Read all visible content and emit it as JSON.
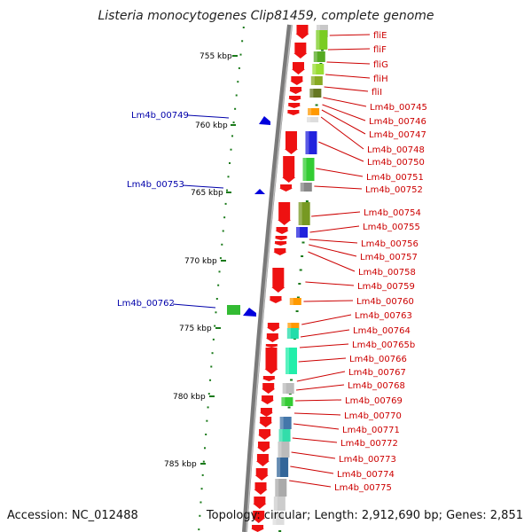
{
  "title": "Listeria monocytogenes Clip81459, complete genome",
  "footer": {
    "accession": "Accession: NC_012488",
    "summary": "Topology: circular; Length: 2,912,690 bp; Genes: 2,851"
  },
  "colors": {
    "gene_label_right": "#cc0000",
    "gene_label_left": "#0000aa",
    "forward_arrow": "#ee1111",
    "reverse_arrow": "#0000dd",
    "tick": "#1a7a1a"
  },
  "scale_ticks": [
    "755 kbp",
    "760 kbp",
    "765 kbp",
    "770 kbp",
    "775 kbp",
    "780 kbp",
    "785 kbp"
  ],
  "right_gene_labels": [
    "fliE",
    "fliF",
    "fliG",
    "fliH",
    "fliI",
    "Lm4b_00745",
    "Lm4b_00746",
    "Lm4b_00747",
    "Lm4b_00748",
    "Lm4b_00750",
    "Lm4b_00751",
    "Lm4b_00752",
    "Lm4b_00754",
    "Lm4b_00755",
    "Lm4b_00756",
    "Lm4b_00757",
    "Lm4b_00758",
    "Lm4b_00759",
    "Lm4b_00760",
    "Lm4b_00763",
    "Lm4b_00764",
    "Lm4b_00765b",
    "Lm4b_00766",
    "Lm4b_00767",
    "Lm4b_00768",
    "Lm4b_00769",
    "Lm4b_00770",
    "Lm4b_00771",
    "Lm4b_00772",
    "Lm4b_00773",
    "Lm4b_00774",
    "Lm4b_00775"
  ],
  "left_gene_labels": [
    "Lm4b_00749",
    "Lm4b_00753",
    "Lm4b_00762"
  ]
}
